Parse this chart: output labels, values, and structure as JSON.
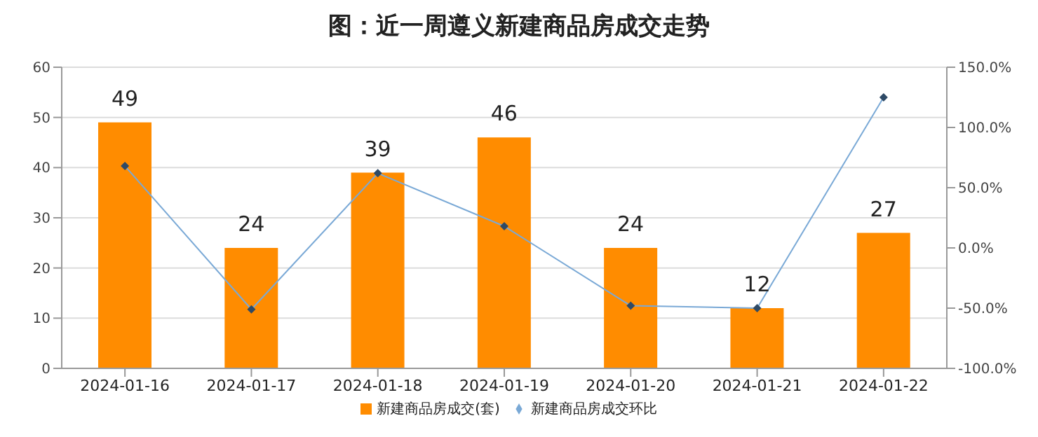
{
  "chart_data": {
    "type": "bar",
    "title": "图：近一周遵义新建商品房成交走势",
    "categories": [
      "2024-01-16",
      "2024-01-17",
      "2024-01-18",
      "2024-01-19",
      "2024-01-20",
      "2024-01-21",
      "2024-01-22"
    ],
    "series": [
      {
        "name": "新建商品房成交(套)",
        "color": "#ff8c00",
        "values": [
          49,
          24,
          39,
          46,
          24,
          12,
          27
        ],
        "data_labels": true
      },
      {
        "name": "新建商品房成交环比",
        "type": "line",
        "axis": "y2",
        "color": "#7aa9d6",
        "marker": "diamond",
        "values": [
          68,
          -51,
          62,
          18,
          -48,
          -50,
          125
        ]
      }
    ],
    "ylim": [
      0,
      60
    ],
    "yticks": [
      0,
      10,
      20,
      30,
      40,
      50,
      60
    ],
    "y2lim": [
      -100,
      150
    ],
    "y2ticks": [
      {
        "value": -100,
        "label": "-100.0%"
      },
      {
        "value": -50,
        "label": "-50.0%"
      },
      {
        "value": 0,
        "label": "0.0%"
      },
      {
        "value": 50,
        "label": "50.0%"
      },
      {
        "value": 100,
        "label": "100.0%"
      },
      {
        "value": 150,
        "label": "150.0%"
      }
    ],
    "grid": "y",
    "legend": "bottom"
  }
}
